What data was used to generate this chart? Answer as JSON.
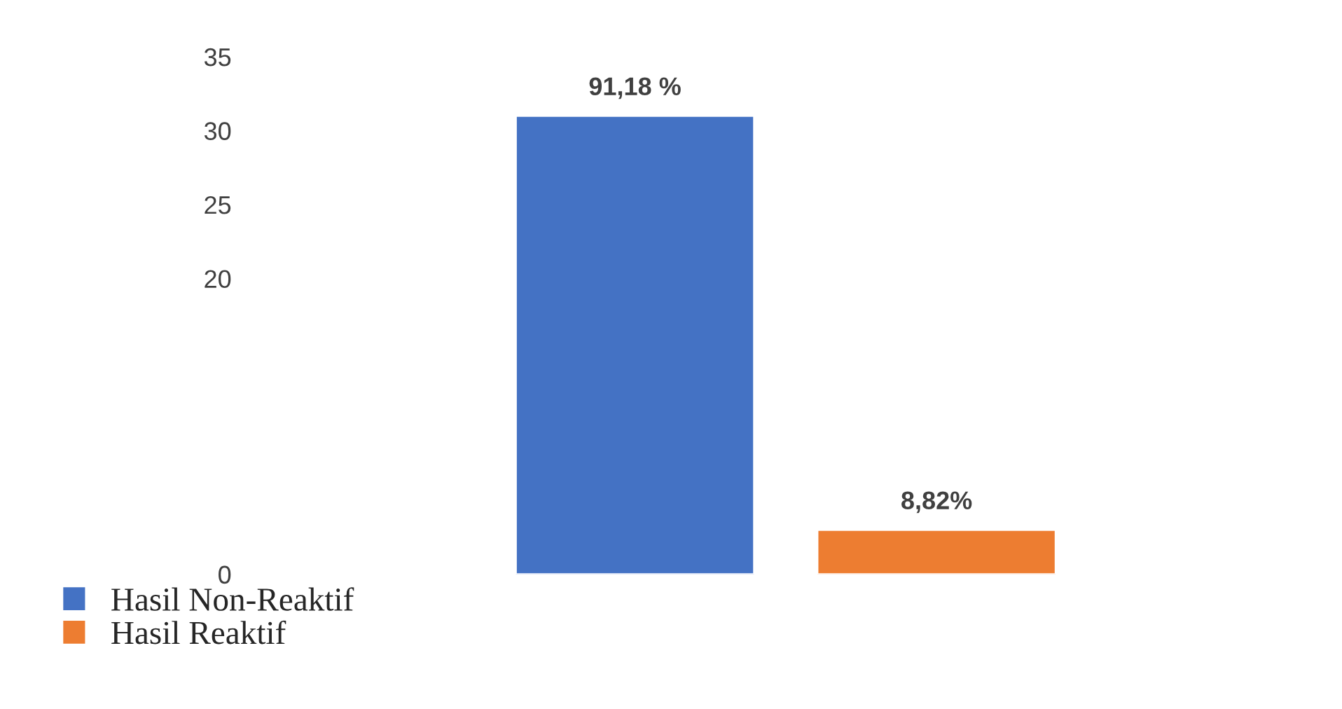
{
  "chart_data": {
    "type": "bar",
    "categories": [
      null,
      null
    ],
    "series": [
      {
        "name": "Hasil Non-Reaktif",
        "color": "#4472c4",
        "values": [
          31,
          null
        ]
      },
      {
        "name": "Hasil Reaktif",
        "color": "#ed7d31",
        "values": [
          null,
          3
        ]
      }
    ],
    "annotations": [
      "91,18 %",
      "8,82%"
    ],
    "ylim": [
      0,
      35
    ],
    "yticks": [
      0,
      20,
      25,
      30,
      35
    ],
    "stacked": true,
    "grid": false,
    "legend": "bottom left"
  }
}
